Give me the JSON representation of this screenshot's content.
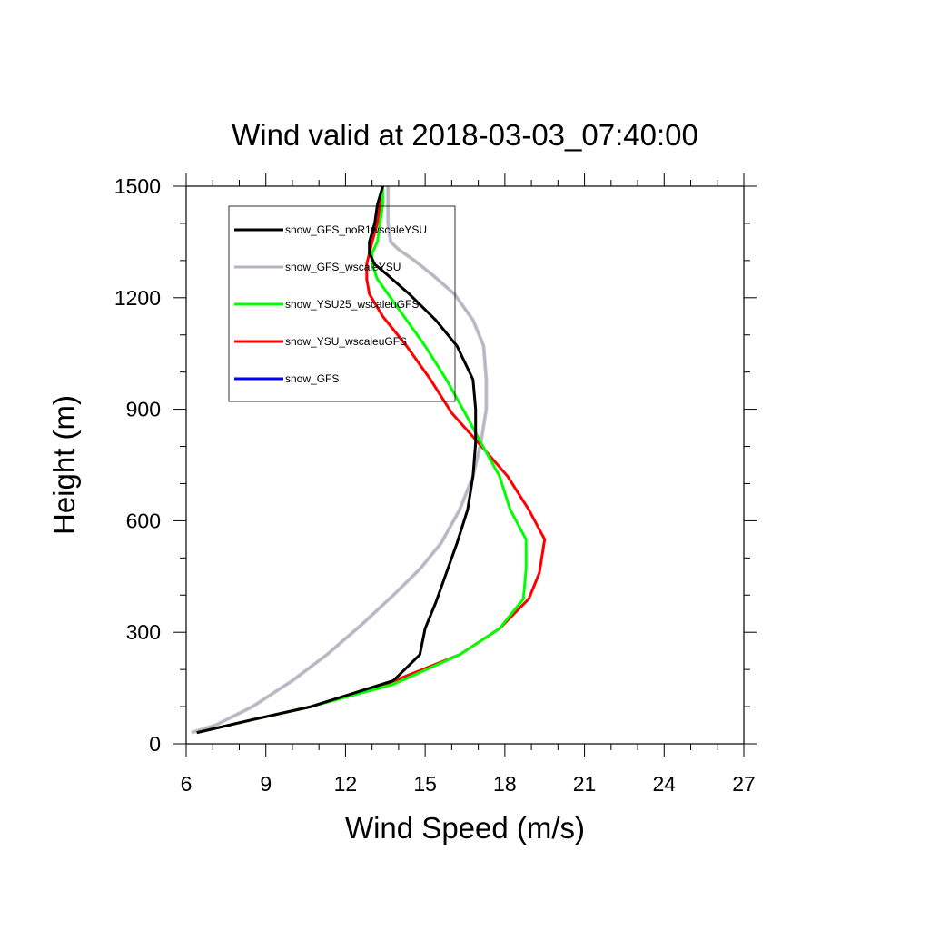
{
  "chart_data": {
    "type": "line",
    "title": "Wind valid at 2018-03-03_07:40:00",
    "xlabel": "Wind Speed (m/s)",
    "ylabel": "Height (m)",
    "xlim": [
      6,
      27
    ],
    "ylim": [
      0,
      1500
    ],
    "xticks": [
      6,
      9,
      12,
      15,
      18,
      21,
      24,
      27
    ],
    "yticks": [
      0,
      300,
      600,
      900,
      1200,
      1500
    ],
    "xtick_labels": [
      "6",
      "9",
      "12",
      "15",
      "18",
      "21",
      "24",
      "27"
    ],
    "ytick_labels": [
      "0",
      "300",
      "600",
      "900",
      "1200",
      "1500"
    ],
    "grid": false,
    "legend_position": "top-left",
    "series": [
      {
        "name": "snow_GFS_noR1wscaleYSU",
        "color": "#000000",
        "x": [
          6.4,
          8.5,
          10.7,
          13.8,
          14.8,
          15.0,
          15.4,
          15.8,
          16.2,
          16.6,
          16.8,
          16.9,
          16.9,
          16.8,
          16.2,
          15.4,
          14.4,
          13.6,
          13.1,
          12.9,
          12.9,
          13.1,
          13.2,
          13.4
        ],
        "y": [
          30,
          65,
          100,
          170,
          240,
          310,
          380,
          460,
          540,
          630,
          720,
          810,
          900,
          980,
          1070,
          1140,
          1210,
          1260,
          1290,
          1320,
          1350,
          1400,
          1450,
          1500
        ]
      },
      {
        "name": "snow_GFS_wscaleYSU",
        "color": "#b5b5c2",
        "x": [
          6.2,
          7.1,
          8.5,
          10.0,
          11.3,
          12.6,
          13.8,
          14.8,
          15.6,
          16.3,
          16.8,
          17.1,
          17.3,
          17.3,
          17.2,
          16.8,
          16.1,
          15.3,
          14.6,
          14.0,
          13.7,
          13.6,
          13.6,
          13.6
        ],
        "y": [
          30,
          50,
          100,
          170,
          240,
          320,
          400,
          470,
          540,
          630,
          720,
          810,
          900,
          980,
          1070,
          1140,
          1210,
          1260,
          1300,
          1330,
          1350,
          1400,
          1450,
          1500
        ]
      },
      {
        "name": "snow_YSU25_wscaleuGFS",
        "color": "#00ff00",
        "x": [
          6.4,
          8.5,
          10.7,
          13.8,
          16.3,
          17.8,
          18.7,
          18.8,
          18.8,
          18.2,
          17.8,
          17.1,
          16.5,
          15.8,
          15.0,
          14.3,
          13.6,
          13.2,
          13.0,
          13.0,
          13.2,
          13.3,
          13.4,
          13.4
        ],
        "y": [
          30,
          65,
          100,
          160,
          240,
          310,
          390,
          470,
          550,
          630,
          720,
          810,
          890,
          980,
          1070,
          1140,
          1210,
          1250,
          1290,
          1320,
          1350,
          1400,
          1450,
          1500
        ]
      },
      {
        "name": "snow_YSU_wscaleuGFS",
        "color": "#ff0000",
        "x": [
          6.4,
          8.5,
          10.7,
          13.5,
          16.3,
          17.8,
          18.9,
          19.3,
          19.5,
          18.9,
          18.1,
          17.0,
          16.0,
          15.2,
          14.3,
          13.4,
          12.9,
          12.8,
          12.8,
          12.9,
          13.0,
          13.2,
          13.3,
          13.4
        ],
        "y": [
          30,
          65,
          100,
          160,
          240,
          310,
          390,
          460,
          550,
          630,
          720,
          810,
          890,
          980,
          1070,
          1150,
          1210,
          1250,
          1290,
          1320,
          1350,
          1400,
          1450,
          1500
        ]
      },
      {
        "name": "snow_GFS",
        "color": "#0000ff",
        "x": [],
        "y": []
      }
    ]
  }
}
